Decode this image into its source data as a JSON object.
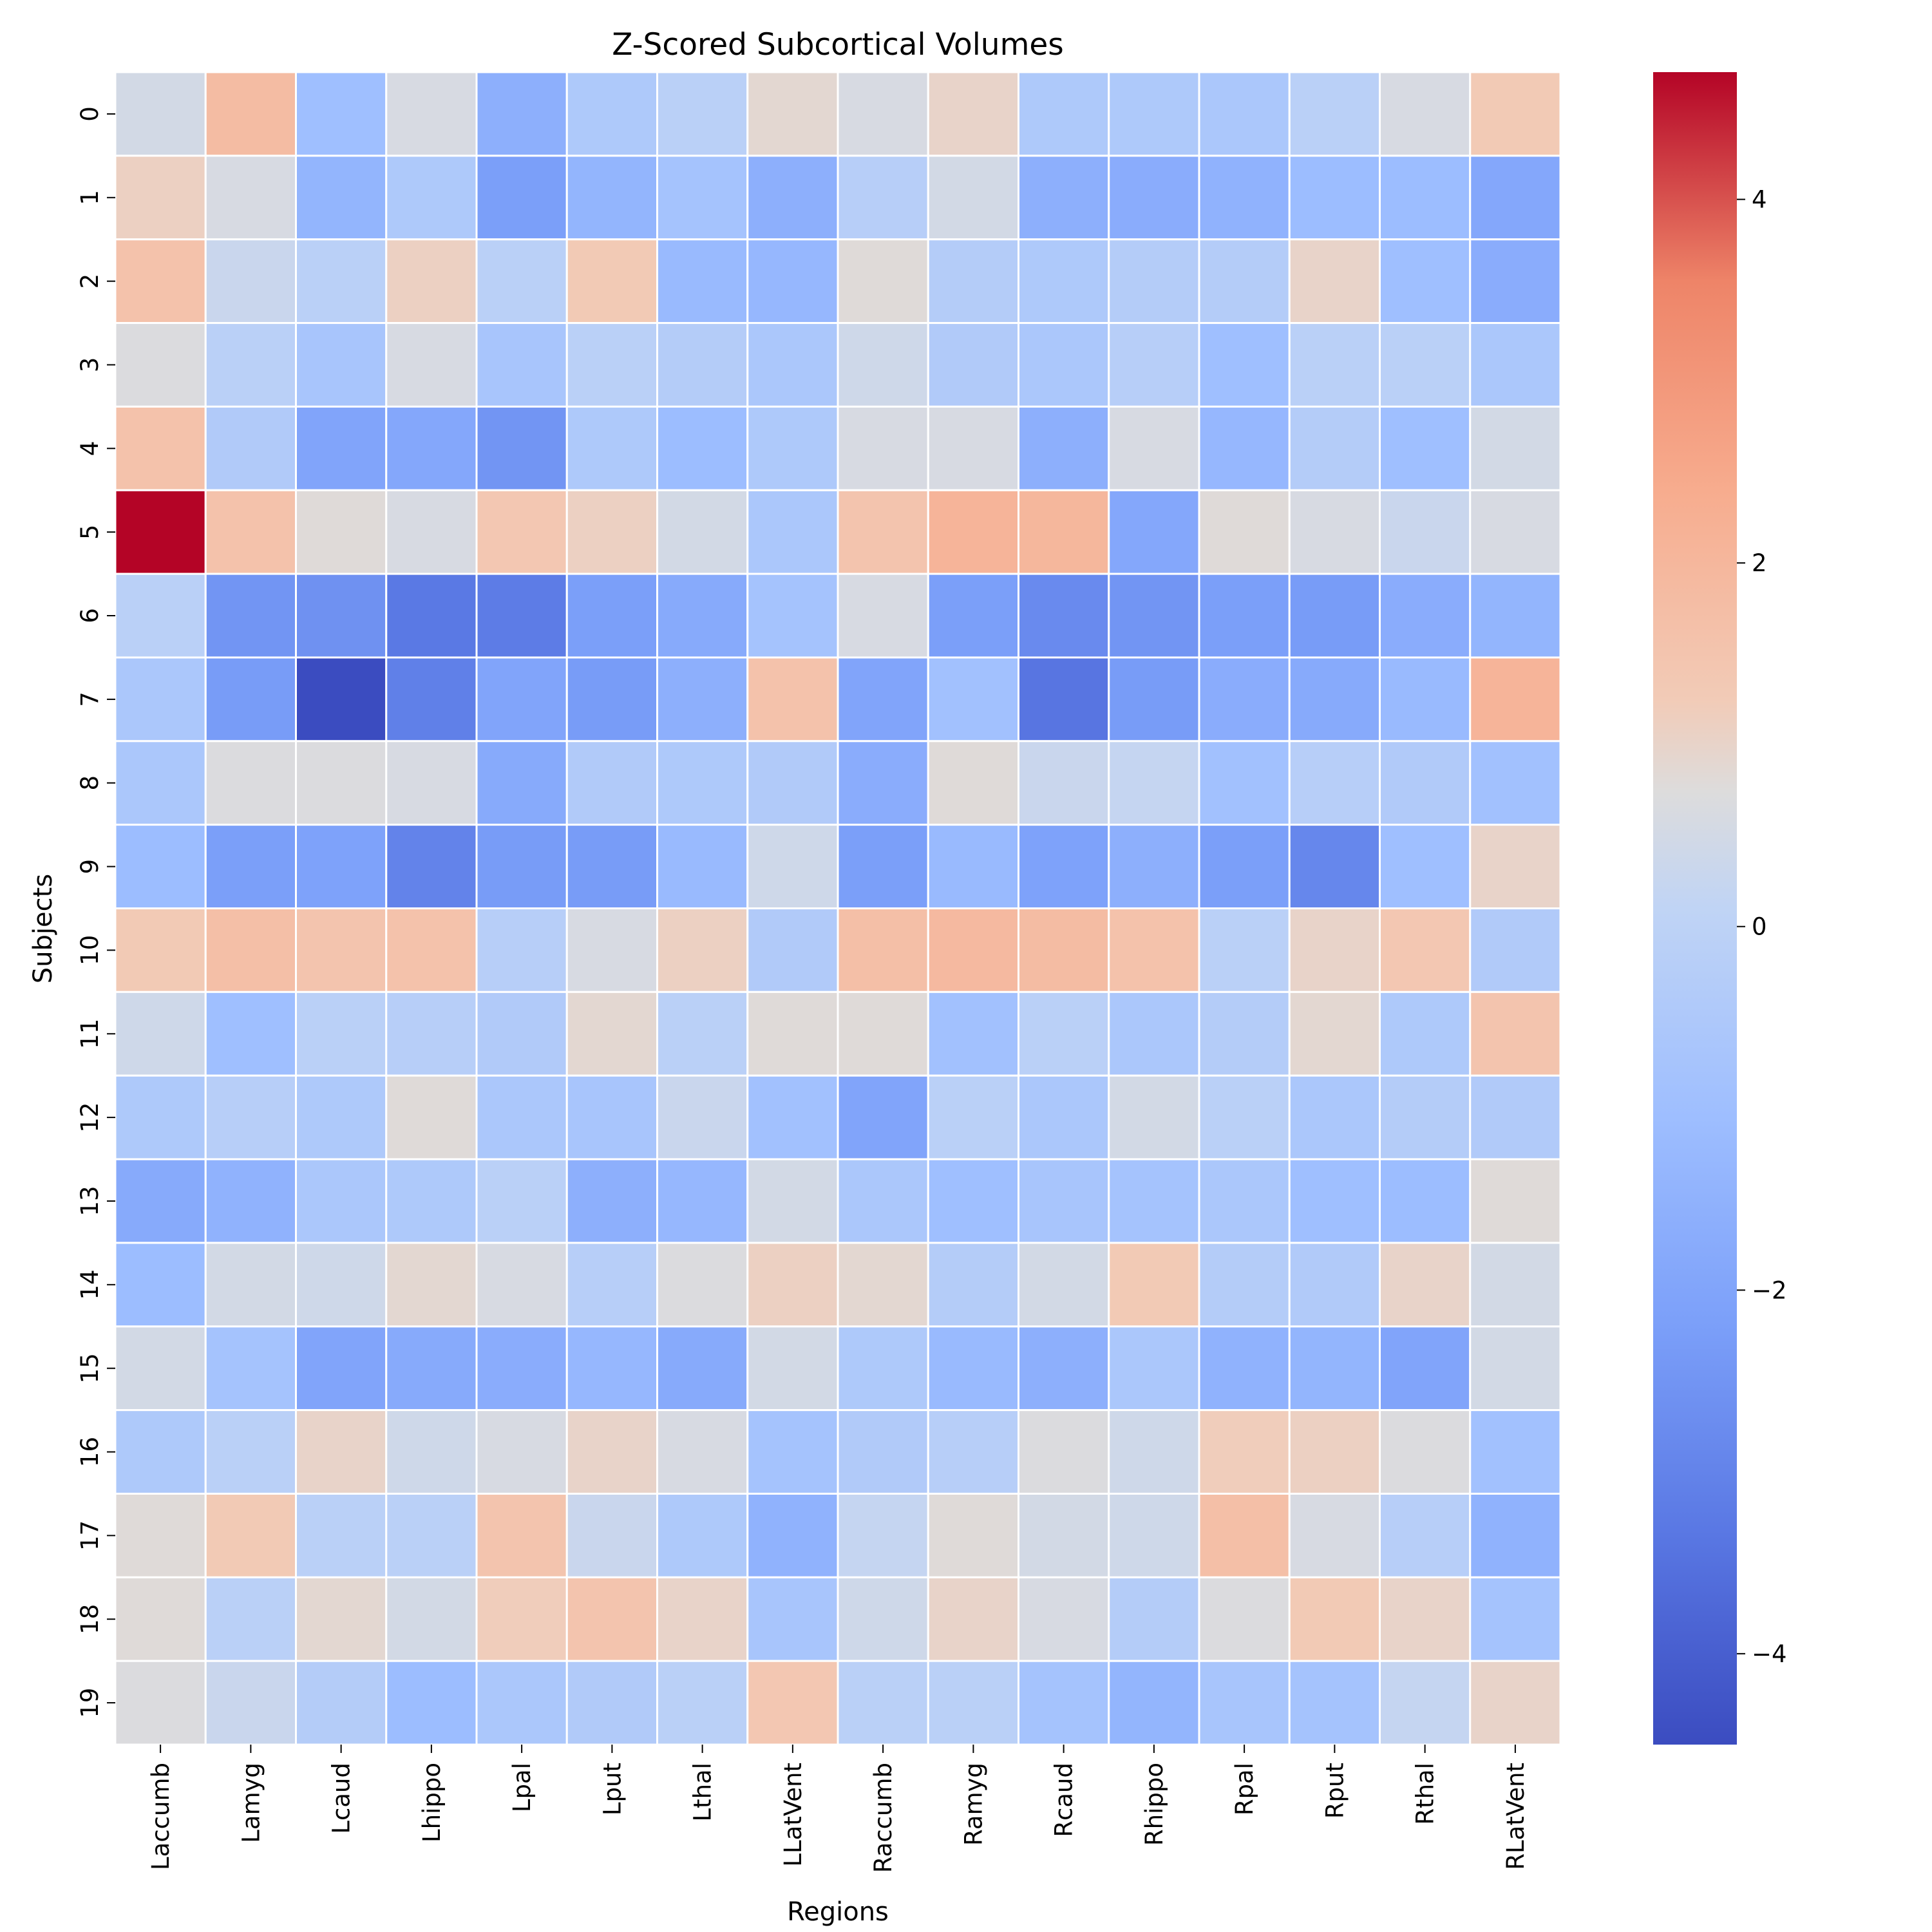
{
  "chart_data": {
    "type": "heatmap",
    "title": "Z-Scored Subcortical Volumes",
    "xlabel": "Regions",
    "ylabel": "Subjects",
    "x_categories": [
      "Laccumb",
      "Lamyg",
      "Lcaud",
      "Lhippo",
      "Lpal",
      "Lput",
      "Lthal",
      "LLatVent",
      "Raccumb",
      "Ramyg",
      "Rcaud",
      "Rhippo",
      "Rpal",
      "Rput",
      "Rthal",
      "RLatVent"
    ],
    "y_categories": [
      "0",
      "1",
      "2",
      "3",
      "4",
      "5",
      "6",
      "7",
      "8",
      "9",
      "10",
      "11",
      "12",
      "13",
      "14",
      "15",
      "16",
      "17",
      "18",
      "19"
    ],
    "values": [
      [
        0.5,
        1.8,
        -1.0,
        0.6,
        -1.6,
        -0.5,
        -0.1,
        0.9,
        0.6,
        1.0,
        -0.5,
        -0.5,
        -0.6,
        -0.1,
        0.6,
        1.3
      ],
      [
        1.1,
        0.6,
        -1.4,
        -0.5,
        -2.2,
        -1.4,
        -0.8,
        -1.6,
        -0.2,
        0.5,
        -1.6,
        -1.7,
        -1.5,
        -1.1,
        -1.1,
        -1.9
      ],
      [
        1.6,
        0.3,
        -0.1,
        1.1,
        -0.1,
        1.3,
        -1.2,
        -1.3,
        0.8,
        -0.3,
        -0.5,
        -0.3,
        -0.3,
        1.0,
        -1.0,
        -1.7
      ],
      [
        0.7,
        -0.1,
        -0.7,
        0.6,
        -0.7,
        -0.1,
        -0.3,
        -0.6,
        0.4,
        -0.4,
        -0.6,
        -0.2,
        -1.0,
        -0.1,
        -0.1,
        -0.6
      ],
      [
        1.6,
        -0.4,
        -2.0,
        -1.9,
        -2.5,
        -0.5,
        -1.1,
        -0.5,
        0.6,
        0.6,
        -1.6,
        0.6,
        -1.3,
        -0.3,
        -1.0,
        0.5
      ],
      [
        4.7,
        1.6,
        0.8,
        0.6,
        1.4,
        1.1,
        0.5,
        -0.6,
        1.5,
        2.1,
        2.0,
        -1.9,
        0.8,
        0.6,
        0.3,
        0.6
      ],
      [
        -0.1,
        -2.5,
        -2.6,
        -3.3,
        -3.2,
        -2.2,
        -1.8,
        -0.8,
        0.6,
        -2.2,
        -2.8,
        -2.5,
        -2.2,
        -2.3,
        -1.7,
        -1.4
      ],
      [
        -0.6,
        -2.3,
        -4.5,
        -3.1,
        -2.0,
        -2.3,
        -1.6,
        1.6,
        -2.0,
        -0.9,
        -3.4,
        -2.3,
        -1.7,
        -1.8,
        -1.2,
        2.1
      ],
      [
        -0.6,
        0.7,
        0.7,
        0.6,
        -1.8,
        -0.4,
        -0.5,
        -0.4,
        -1.7,
        0.8,
        0.3,
        0.2,
        -0.9,
        -0.2,
        -0.4,
        -0.9
      ],
      [
        -1.1,
        -2.2,
        -2.1,
        -3.0,
        -2.3,
        -2.3,
        -1.2,
        0.4,
        -2.2,
        -1.2,
        -2.1,
        -1.6,
        -2.2,
        -2.9,
        -1.0,
        1.0
      ],
      [
        1.3,
        1.7,
        1.5,
        1.6,
        -0.2,
        0.6,
        1.1,
        -0.4,
        1.7,
        1.9,
        1.8,
        1.6,
        -0.1,
        1.0,
        1.4,
        -0.4
      ],
      [
        0.4,
        -1.0,
        -0.1,
        -0.2,
        -0.4,
        0.9,
        -0.1,
        0.8,
        0.8,
        -0.9,
        -0.1,
        -0.6,
        -0.3,
        0.9,
        -0.5,
        1.5
      ],
      [
        -0.5,
        -0.2,
        -0.5,
        0.8,
        -0.6,
        -0.7,
        0.3,
        -0.9,
        -2.0,
        -0.1,
        -0.6,
        0.5,
        -0.1,
        -0.6,
        -0.3,
        -0.4
      ],
      [
        -1.8,
        -1.5,
        -0.6,
        -0.5,
        -0.1,
        -1.6,
        -1.3,
        0.5,
        -0.6,
        -1.0,
        -0.7,
        -0.8,
        -0.6,
        -1.0,
        -1.1,
        0.8
      ],
      [
        -1.1,
        0.5,
        0.4,
        0.9,
        0.6,
        -0.2,
        0.7,
        1.1,
        0.9,
        -0.3,
        0.5,
        1.3,
        -0.3,
        -0.4,
        1.0,
        0.5
      ],
      [
        0.5,
        -0.8,
        -2.0,
        -1.8,
        -1.7,
        -1.3,
        -1.8,
        0.5,
        -0.5,
        -1.2,
        -1.6,
        -0.6,
        -1.5,
        -1.4,
        -2.0,
        0.5
      ],
      [
        -0.5,
        -0.1,
        1.0,
        0.4,
        0.6,
        1.0,
        0.6,
        -0.8,
        -0.4,
        -0.2,
        0.7,
        0.4,
        1.2,
        1.1,
        0.7,
        -0.9
      ],
      [
        0.8,
        1.3,
        -0.1,
        -0.1,
        1.5,
        0.3,
        -0.5,
        -1.5,
        0.2,
        0.8,
        0.5,
        0.4,
        1.7,
        0.6,
        -0.2,
        -1.5
      ],
      [
        0.8,
        -0.1,
        0.9,
        0.5,
        1.2,
        1.5,
        1.0,
        -0.7,
        0.4,
        1.0,
        0.6,
        -0.3,
        0.7,
        1.3,
        1.0,
        -0.8
      ],
      [
        0.7,
        0.3,
        -0.3,
        -1.1,
        -0.6,
        -0.4,
        -0.1,
        1.4,
        -0.1,
        -0.1,
        -0.8,
        -1.4,
        -0.7,
        -0.8,
        0.2,
        1.0
      ]
    ],
    "colormap": "coolwarm",
    "vmin": -4.5,
    "vmax": 4.7,
    "colorbar_ticks": [
      4,
      2,
      0,
      -2,
      -4
    ],
    "colorbar_tick_labels": [
      "4",
      "2",
      "0",
      "−2",
      "−4"
    ],
    "cell_border_color": "#ffffff"
  }
}
